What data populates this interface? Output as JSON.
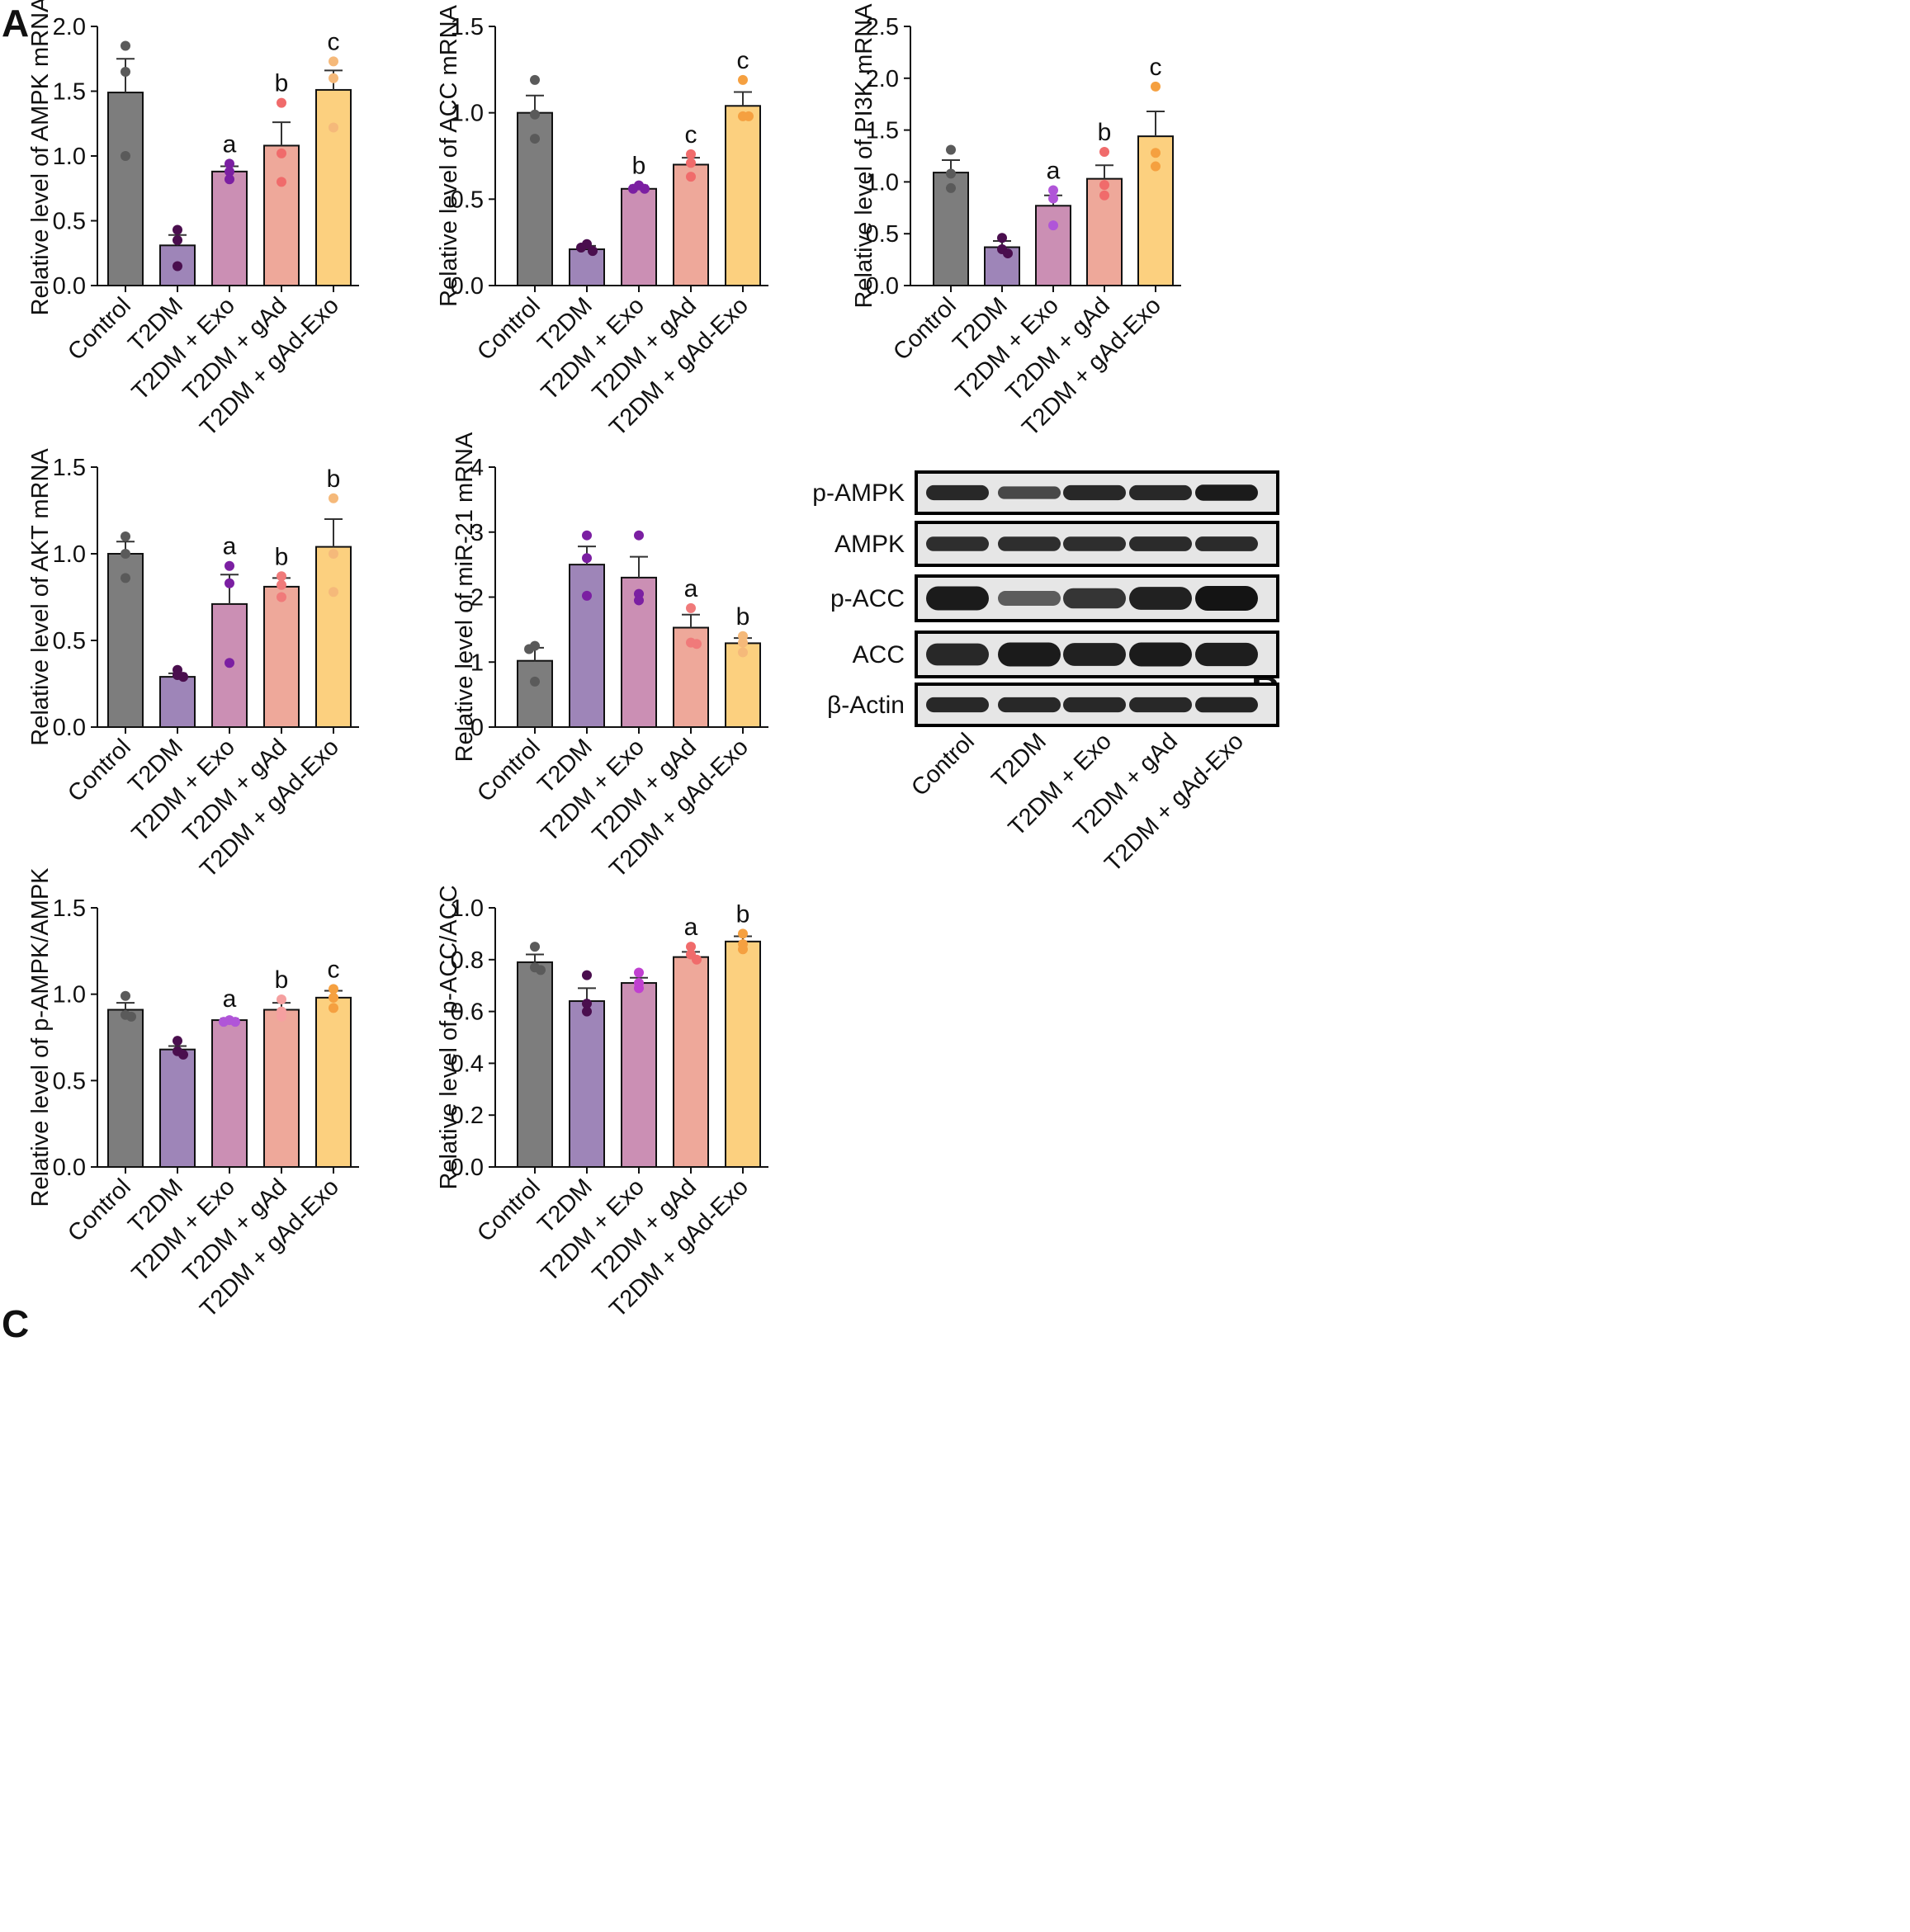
{
  "panels": {
    "A": "A",
    "B": "B",
    "C": "C"
  },
  "colors": {
    "bars": [
      "#7d7d7d",
      "#9e85b8",
      "#cb8fb4",
      "#eea89a",
      "#fcd07f"
    ],
    "axis": "#111111",
    "error": "#333333"
  },
  "chart_data": [
    {
      "type": "bar",
      "panel": "A",
      "categories": [
        "Control",
        "T2DM",
        "T2DM + Exo",
        "T2DM + gAd",
        "T2DM + gAd-Exo"
      ],
      "values": [
        1.49,
        0.31,
        0.88,
        1.08,
        1.51
      ],
      "errors": [
        0.26,
        0.08,
        0.04,
        0.18,
        0.15
      ],
      "points": [
        [
          1.85,
          1.65,
          1.0
        ],
        [
          0.43,
          0.35,
          0.15
        ],
        [
          0.94,
          0.88,
          0.82
        ],
        [
          1.41,
          1.02,
          0.8
        ],
        [
          1.73,
          1.6,
          1.22
        ]
      ],
      "point_colors": [
        "#5a5a5a",
        "#4a0e4e",
        "#7b1fa2",
        "#f06b6b",
        "#f5b97a"
      ],
      "sig": [
        "",
        "",
        "a",
        "b",
        "c"
      ],
      "ylabel": "Relative level of AMPK mRNA",
      "ylim": [
        0,
        2.0
      ],
      "yticks": [
        "0.0",
        "0.5",
        "1.0",
        "1.5",
        "2.0"
      ]
    },
    {
      "type": "bar",
      "panel": "A",
      "categories": [
        "Control",
        "T2DM",
        "T2DM + Exo",
        "T2DM + gAd",
        "T2DM + gAd-Exo"
      ],
      "values": [
        1.0,
        0.21,
        0.56,
        0.7,
        1.04
      ],
      "errors": [
        0.1,
        0.02,
        0.02,
        0.04,
        0.08
      ],
      "points": [
        [
          1.19,
          0.99,
          0.85
        ],
        [
          0.24,
          0.22,
          0.2
        ],
        [
          0.58,
          0.56,
          0.56
        ],
        [
          0.76,
          0.71,
          0.63
        ],
        [
          1.19,
          0.98,
          0.98
        ]
      ],
      "point_colors": [
        "#5a5a5a",
        "#4a0e4e",
        "#7b1fa2",
        "#f06b6b",
        "#f5a040"
      ],
      "sig": [
        "",
        "",
        "b",
        "c",
        "c"
      ],
      "ylabel": "Relative level of ACC mRNA",
      "ylim": [
        0,
        1.5
      ],
      "yticks": [
        "0.0",
        "0.5",
        "1.0",
        "1.5"
      ]
    },
    {
      "type": "bar",
      "panel": "A",
      "categories": [
        "Control",
        "T2DM",
        "T2DM + Exo",
        "T2DM + gAd",
        "T2DM + gAd-Exo"
      ],
      "values": [
        1.09,
        0.37,
        0.77,
        1.03,
        1.44
      ],
      "errors": [
        0.12,
        0.06,
        0.1,
        0.13,
        0.24
      ],
      "points": [
        [
          1.31,
          1.08,
          0.94
        ],
        [
          0.46,
          0.35,
          0.31
        ],
        [
          0.92,
          0.84,
          0.58
        ],
        [
          1.29,
          0.97,
          0.87
        ],
        [
          1.92,
          1.28,
          1.15
        ]
      ],
      "point_colors": [
        "#5a5a5a",
        "#4a0e4e",
        "#b055d8",
        "#f06b6b",
        "#f5a040"
      ],
      "sig": [
        "",
        "",
        "a",
        "b",
        "c"
      ],
      "ylabel": "Relative level of PI3K mRNA",
      "ylim": [
        0,
        2.5
      ],
      "yticks": [
        "0.0",
        "0.5",
        "1.0",
        "1.5",
        "2.0",
        "2.5"
      ]
    },
    {
      "type": "bar",
      "panel": "A",
      "categories": [
        "Control",
        "T2DM",
        "T2DM + Exo",
        "T2DM + gAd",
        "T2DM + gAd-Exo"
      ],
      "values": [
        1.0,
        0.29,
        0.71,
        0.81,
        1.04
      ],
      "errors": [
        0.07,
        0.02,
        0.17,
        0.05,
        0.16
      ],
      "points": [
        [
          1.1,
          1.0,
          0.86
        ],
        [
          0.33,
          0.3,
          0.29
        ],
        [
          0.93,
          0.83,
          0.37
        ],
        [
          0.87,
          0.82,
          0.75
        ],
        [
          1.32,
          1.0,
          0.78
        ]
      ],
      "point_colors": [
        "#5a5a5a",
        "#4a0e4e",
        "#7b1fa2",
        "#f07a7a",
        "#f5b97a"
      ],
      "sig": [
        "",
        "",
        "a",
        "b",
        "b"
      ],
      "ylabel": "Relative level of AKT mRNA",
      "ylim": [
        0,
        1.5
      ],
      "yticks": [
        "0.0",
        "0.5",
        "1.0",
        "1.5"
      ]
    },
    {
      "type": "bar",
      "panel": "A",
      "categories": [
        "Control",
        "T2DM",
        "T2DM + Exo",
        "T2DM + gAd",
        "T2DM + gAd-Exo"
      ],
      "values": [
        1.02,
        2.5,
        2.3,
        1.53,
        1.29
      ],
      "errors": [
        0.2,
        0.28,
        0.32,
        0.2,
        0.08
      ],
      "points": [
        [
          1.25,
          1.2,
          0.7
        ],
        [
          2.95,
          2.6,
          2.02
        ],
        [
          2.95,
          2.05,
          1.95
        ],
        [
          1.83,
          1.3,
          1.28
        ],
        [
          1.4,
          1.3,
          1.15
        ]
      ],
      "point_colors": [
        "#5a5a5a",
        "#7b1fa2",
        "#7b1fa2",
        "#f07a7a",
        "#f5b97a"
      ],
      "sig": [
        "",
        "",
        "",
        "a",
        "b"
      ],
      "ylabel": "Relative level of miR-21 mRNA",
      "ylim": [
        0,
        4
      ],
      "yticks": [
        "0",
        "1",
        "2",
        "3",
        "4"
      ]
    },
    {
      "type": "bar",
      "panel": "C",
      "categories": [
        "Control",
        "T2DM",
        "T2DM + Exo",
        "T2DM + gAd",
        "T2DM + gAd-Exo"
      ],
      "values": [
        0.91,
        0.68,
        0.85,
        0.91,
        0.98
      ],
      "errors": [
        0.04,
        0.02,
        0.01,
        0.04,
        0.04
      ],
      "points": [
        [
          0.99,
          0.88,
          0.87
        ],
        [
          0.73,
          0.67,
          0.65
        ],
        [
          0.85,
          0.84,
          0.84
        ],
        [
          0.97,
          0.9,
          0.87
        ],
        [
          1.03,
          0.98,
          0.92
        ]
      ],
      "point_colors": [
        "#5a5a5a",
        "#4a0e4e",
        "#b055d8",
        "#f5a0a0",
        "#f5a040"
      ],
      "sig": [
        "",
        "",
        "a",
        "b",
        "c"
      ],
      "ylabel": "Relative level of p-AMPK/AMPK",
      "ylim": [
        0,
        1.5
      ],
      "yticks": [
        "0.0",
        "0.5",
        "1.0",
        "1.5"
      ]
    },
    {
      "type": "bar",
      "panel": "C",
      "categories": [
        "Control",
        "T2DM",
        "T2DM + Exo",
        "T2DM + gAd",
        "T2DM + gAd-Exo"
      ],
      "values": [
        0.79,
        0.64,
        0.71,
        0.81,
        0.87
      ],
      "errors": [
        0.03,
        0.05,
        0.02,
        0.02,
        0.02
      ],
      "points": [
        [
          0.85,
          0.77,
          0.76
        ],
        [
          0.74,
          0.63,
          0.6
        ],
        [
          0.75,
          0.71,
          0.69
        ],
        [
          0.85,
          0.82,
          0.8
        ],
        [
          0.9,
          0.86,
          0.84
        ]
      ],
      "point_colors": [
        "#5a5a5a",
        "#4a0e4e",
        "#c040d0",
        "#f06b6b",
        "#f5a040"
      ],
      "sig": [
        "",
        "",
        "",
        "a",
        "b"
      ],
      "ylabel": "Relative level of p-ACC/ACC",
      "ylim": [
        0,
        1.0
      ],
      "yticks": [
        "0.0",
        "0.2",
        "0.4",
        "0.6",
        "0.8",
        "1.0"
      ]
    }
  ],
  "blot": {
    "rows": [
      "p-AMPK",
      "AMPK",
      "p-ACC",
      "ACC",
      "β-Actin"
    ],
    "lanes": [
      "Control",
      "T2DM",
      "T2DM + Exo",
      "T2DM + gAd",
      "T2DM + gAd-Exo"
    ],
    "intensity": [
      [
        0.85,
        0.6,
        0.85,
        0.85,
        0.95
      ],
      [
        0.8,
        0.8,
        0.8,
        0.82,
        0.82
      ],
      [
        0.95,
        0.45,
        0.75,
        0.9,
        1.0
      ],
      [
        0.85,
        0.95,
        0.9,
        0.95,
        0.92
      ],
      [
        0.85,
        0.85,
        0.85,
        0.85,
        0.88
      ]
    ]
  }
}
